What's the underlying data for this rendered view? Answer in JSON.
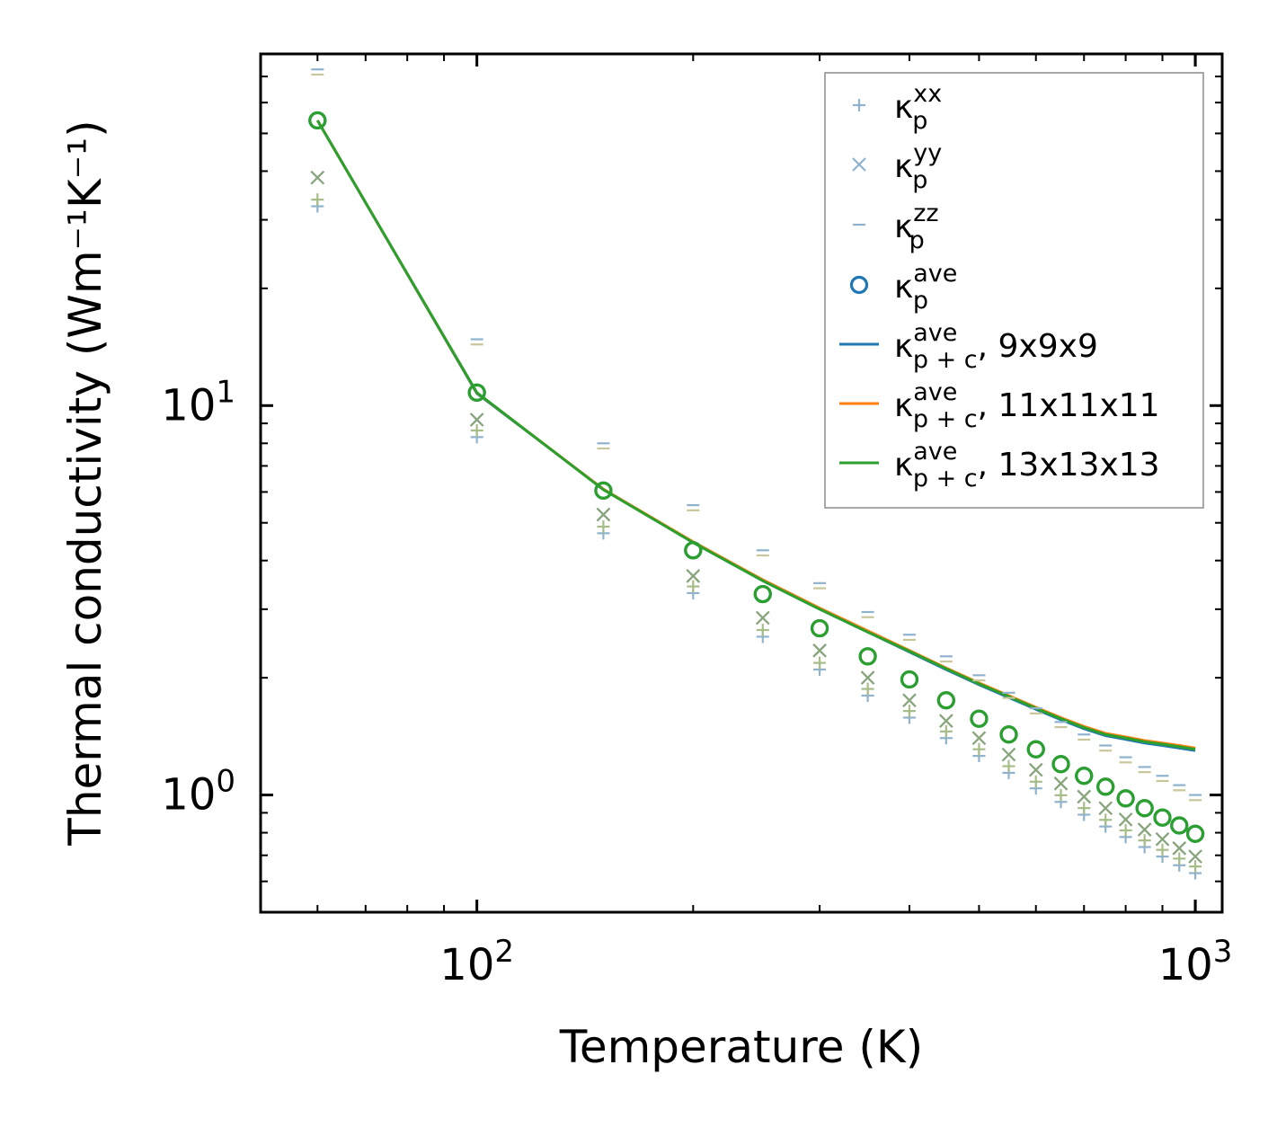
{
  "chart_data": {
    "type": "scatter",
    "xlabel": "Temperature (K)",
    "ylabel": "Thermal conductivity (Wm⁻¹K⁻¹)",
    "xscale": "log",
    "yscale": "log",
    "xlim": [
      50,
      1090
    ],
    "ylim": [
      0.5,
      80
    ],
    "x_ticks": [
      {
        "value": 100,
        "base": "10",
        "exp": "2"
      },
      {
        "value": 1000,
        "base": "10",
        "exp": "3"
      }
    ],
    "y_ticks": [
      {
        "value": 1,
        "base": "10",
        "exp": "0"
      },
      {
        "value": 10,
        "base": "10",
        "exp": "1"
      }
    ],
    "temperatures": [
      60,
      100,
      150,
      200,
      250,
      300,
      350,
      400,
      450,
      500,
      550,
      600,
      650,
      700,
      750,
      800,
      850,
      900,
      950,
      1000
    ],
    "series": [
      {
        "name": "kxx",
        "kind": "marker",
        "marker": "plus",
        "color": "#8fb3cf",
        "label_base": "κ",
        "label_sub": "p",
        "label_sup": "xx",
        "label_suffix": "",
        "values": [
          32.5,
          8.3,
          4.7,
          3.3,
          2.55,
          2.1,
          1.8,
          1.58,
          1.4,
          1.26,
          1.14,
          1.04,
          0.96,
          0.89,
          0.83,
          0.78,
          0.735,
          0.695,
          0.66,
          0.63
        ]
      },
      {
        "name": "kyy",
        "kind": "marker",
        "marker": "x",
        "color": "#8fb3cf",
        "label_base": "κ",
        "label_sub": "p",
        "label_sup": "yy",
        "label_suffix": "",
        "values": [
          38.5,
          9.2,
          5.25,
          3.65,
          2.85,
          2.35,
          2.0,
          1.75,
          1.55,
          1.4,
          1.27,
          1.16,
          1.07,
          0.99,
          0.925,
          0.865,
          0.815,
          0.77,
          0.73,
          0.695
        ]
      },
      {
        "name": "kzz",
        "kind": "marker",
        "marker": "dash",
        "color": "#8fb3cf",
        "label_base": "κ",
        "label_sub": "p",
        "label_sup": "zz",
        "label_suffix": "",
        "values": [
          73,
          14.8,
          8.0,
          5.55,
          4.25,
          3.5,
          2.95,
          2.58,
          2.27,
          2.03,
          1.83,
          1.67,
          1.54,
          1.43,
          1.34,
          1.25,
          1.18,
          1.12,
          1.06,
          1.0
        ]
      },
      {
        "name": "kave",
        "kind": "marker",
        "marker": "circle",
        "color": "#1f77b4",
        "label_base": "κ",
        "label_sub": "p",
        "label_sup": "ave",
        "label_suffix": "",
        "values": [
          54,
          10.8,
          6.05,
          4.25,
          3.28,
          2.68,
          2.27,
          1.98,
          1.75,
          1.57,
          1.43,
          1.31,
          1.2,
          1.12,
          1.05,
          0.98,
          0.925,
          0.875,
          0.835,
          0.795
        ]
      },
      {
        "name": "kpc_9",
        "kind": "line",
        "color": "#1f77b4",
        "label_base": "κ",
        "label_sub": "p + c",
        "label_sup": "ave",
        "label_suffix": ", 9x9x9",
        "values": [
          54,
          10.75,
          6.1,
          4.45,
          3.55,
          3.0,
          2.62,
          2.33,
          2.1,
          1.92,
          1.78,
          1.66,
          1.56,
          1.48,
          1.42,
          1.39,
          1.36,
          1.34,
          1.32,
          1.3
        ]
      },
      {
        "name": "kpc_11",
        "kind": "line",
        "color": "#ff7f0e",
        "label_base": "κ",
        "label_sub": "p + c",
        "label_sup": "ave",
        "label_suffix": ", 11x11x11",
        "values": [
          54,
          10.78,
          6.1,
          4.47,
          3.57,
          3.02,
          2.64,
          2.35,
          2.12,
          1.94,
          1.8,
          1.68,
          1.58,
          1.5,
          1.44,
          1.41,
          1.38,
          1.36,
          1.34,
          1.32
        ]
      },
      {
        "name": "kpc_13",
        "kind": "line",
        "color": "#2ca02c",
        "label_base": "κ",
        "label_sub": "p + c",
        "label_sup": "ave",
        "label_suffix": ", 13x13x13",
        "values": [
          54,
          10.8,
          6.08,
          4.45,
          3.55,
          3.0,
          2.62,
          2.34,
          2.11,
          1.93,
          1.79,
          1.67,
          1.57,
          1.49,
          1.43,
          1.4,
          1.37,
          1.35,
          1.33,
          1.31
        ]
      }
    ],
    "overlay_series": [
      {
        "name": "kxx_overlay",
        "marker": "plus",
        "color": "#a7bd88",
        "factor": 1.04
      },
      {
        "name": "kyy_overlay",
        "marker": "x",
        "color": "#8aa57a",
        "factor": 1.0
      },
      {
        "name": "kzz_overlay",
        "marker": "dash",
        "color": "#c8c69a",
        "factor": 0.97
      },
      {
        "name": "kave_overlay",
        "marker": "circle",
        "color": "#2ca02c",
        "factor": 1.0
      }
    ],
    "legend": {
      "position": "upper-right"
    }
  }
}
